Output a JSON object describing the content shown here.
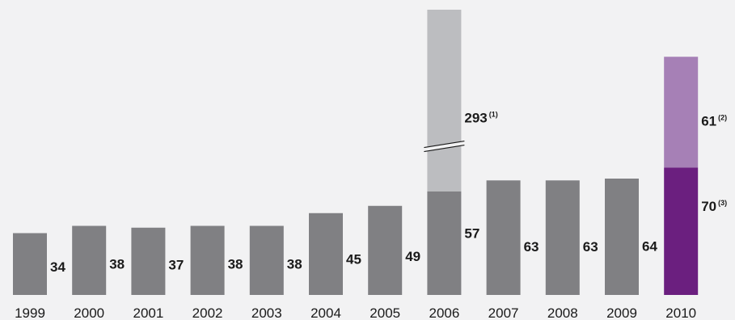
{
  "chart_data": {
    "type": "bar",
    "title": "",
    "xlabel": "",
    "ylabel": "",
    "categories": [
      "1999",
      "2000",
      "2001",
      "2002",
      "2003",
      "2004",
      "2005",
      "2006",
      "2007",
      "2008",
      "2009",
      "2010"
    ],
    "series": [
      {
        "values": [
          34,
          38,
          37,
          38,
          38,
          45,
          49,
          57,
          63,
          63,
          64,
          70
        ],
        "labels": [
          "34",
          "38",
          "37",
          "38",
          "38",
          "45",
          "49",
          "57",
          "63",
          "63",
          "64",
          "70"
        ],
        "notes": [
          "",
          "",
          "",
          "",
          "",
          "",
          "",
          "",
          "",
          "",
          "",
          "(3)"
        ],
        "colors": [
          "#808083",
          "#808083",
          "#808083",
          "#808083",
          "#808083",
          "#808083",
          "#808083",
          "#808083",
          "#808083",
          "#808083",
          "#808083",
          "#6b1f7f"
        ]
      },
      {
        "values": [
          0,
          0,
          0,
          0,
          0,
          0,
          0,
          293,
          0,
          0,
          0,
          61
        ],
        "labels": [
          "",
          "",
          "",
          "",
          "",
          "",
          "",
          "293",
          "",
          "",
          "",
          "61"
        ],
        "notes": [
          "",
          "",
          "",
          "",
          "",
          "",
          "",
          "(1)",
          "",
          "",
          "",
          "(2)"
        ],
        "colors": [
          "#bcbdc0",
          "#bcbdc0",
          "#bcbdc0",
          "#bcbdc0",
          "#bcbdc0",
          "#bcbdc0",
          "#bcbdc0",
          "#bcbdc0",
          "#bcbdc0",
          "#bcbdc0",
          "#bcbdc0",
          "#a680b6"
        ]
      }
    ],
    "axis_break": {
      "category": "2006"
    },
    "ylim": [
      0,
      135
    ],
    "grid": false,
    "legend": "none"
  }
}
